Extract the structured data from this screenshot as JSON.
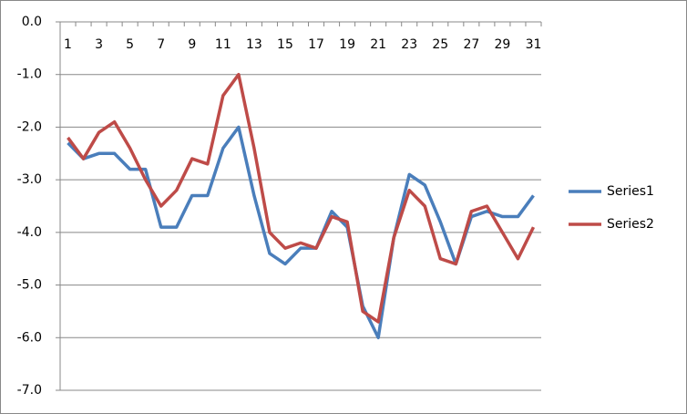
{
  "chart_data": {
    "type": "line",
    "categories": [
      "1",
      null,
      "3",
      null,
      "5",
      null,
      "7",
      null,
      "9",
      null,
      "11",
      null,
      "13",
      null,
      "15",
      null,
      "17",
      null,
      "19",
      null,
      "21",
      null,
      "23",
      null,
      "25",
      null,
      "27",
      null,
      "29",
      null,
      "31"
    ],
    "series": [
      {
        "name": "Series1",
        "color": "#4a7ebb",
        "values": [
          -2.3,
          -2.6,
          -2.5,
          -2.5,
          -2.8,
          -2.8,
          -3.9,
          -3.9,
          -3.3,
          -3.3,
          -2.4,
          -2.0,
          -3.3,
          -4.4,
          -4.6,
          -4.3,
          -4.3,
          -3.6,
          -3.9,
          -5.4,
          -6.0,
          -4.1,
          -2.9,
          -3.1,
          -3.8,
          -4.6,
          -3.7,
          -3.6,
          -3.7,
          -3.7,
          -3.3
        ]
      },
      {
        "name": "Series2",
        "color": "#be4b48",
        "values": [
          -2.2,
          -2.6,
          -2.1,
          -1.9,
          -2.4,
          -3.0,
          -3.5,
          -3.2,
          -2.6,
          -2.7,
          -1.4,
          -1.0,
          -2.4,
          -4.0,
          -4.3,
          -4.2,
          -4.3,
          -3.7,
          -3.8,
          -5.5,
          -5.7,
          -4.1,
          -3.2,
          -3.5,
          -4.5,
          -4.6,
          -3.6,
          -3.5,
          -4.0,
          -4.5,
          -3.9
        ]
      }
    ],
    "ylim": [
      -7,
      0
    ],
    "yticks": [
      {
        "value": 0,
        "label": "0.0"
      },
      {
        "value": -1,
        "label": "-1.0"
      },
      {
        "value": -2,
        "label": "-2.0"
      },
      {
        "value": -3,
        "label": "-3.0"
      },
      {
        "value": -4,
        "label": "-4.0"
      },
      {
        "value": -5,
        "label": "-5.0"
      },
      {
        "value": -6,
        "label": "-6.0"
      },
      {
        "value": -7,
        "label": "-7.0"
      }
    ],
    "grid": true,
    "legend": "right"
  }
}
